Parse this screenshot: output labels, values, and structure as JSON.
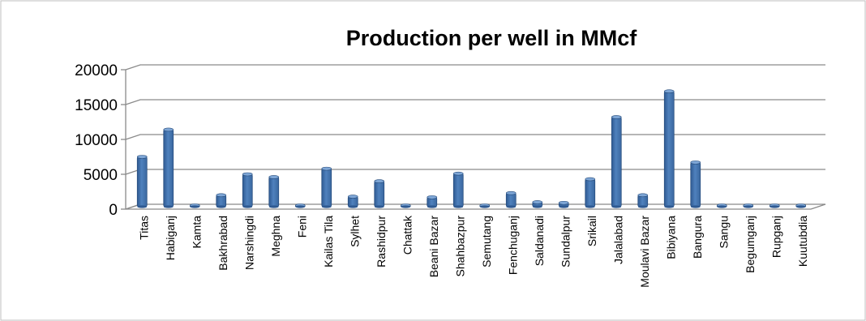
{
  "chart_data": {
    "type": "bar",
    "title": "Production per well in MMcf",
    "xlabel": "",
    "ylabel": "",
    "ylim": [
      0,
      20000
    ],
    "yticks": [
      0,
      5000,
      10000,
      15000,
      20000
    ],
    "grid": true,
    "legend": "none",
    "bar_color": "#4F81BD",
    "categories": [
      "Titas",
      "Habiganj",
      "Kamta",
      "Bakhrabad",
      "Narshingdi",
      "Meghna",
      "Feni",
      "Kailas Tila",
      "Sylhet",
      "Rashidpur",
      "Chattak",
      "Beani Bazar",
      "Shahbazpur",
      "Semutang",
      "Fenchuganj",
      "Saldanadi",
      "Sundalpur",
      "Srikail",
      "Jalalabad",
      "Moulavi Bazar",
      "Bibiyana",
      "Bangura",
      "Sangu",
      "Begumganj",
      "Rupganj",
      "Kuutubdia"
    ],
    "series": [
      {
        "values": [
          7500,
          11400,
          50,
          2000,
          5000,
          4600,
          50,
          5800,
          1800,
          4000,
          50,
          1700,
          5100,
          200,
          2300,
          1000,
          900,
          4300,
          13200,
          2000,
          16900,
          6700,
          50,
          50,
          200,
          50
        ]
      }
    ]
  }
}
